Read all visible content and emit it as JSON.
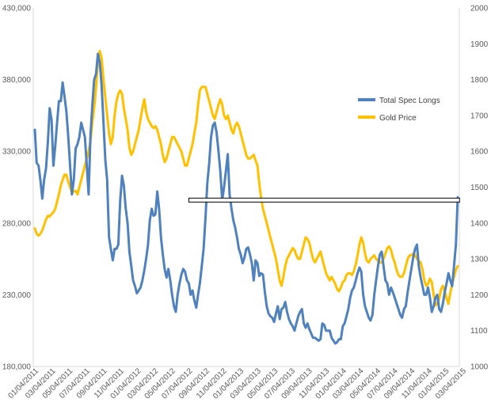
{
  "chart_data": {
    "type": "line",
    "title": "",
    "legend_position": "right",
    "grid": false,
    "series": [
      {
        "name": "Total Spec Longs",
        "axis": "left",
        "color": "#4f81bd",
        "values": [
          345000,
          322000,
          320000,
          310000,
          297000,
          310000,
          318000,
          336000,
          360000,
          352000,
          320000,
          334000,
          350000,
          365000,
          365000,
          378000,
          368000,
          358000,
          340000,
          320000,
          300000,
          310000,
          332000,
          335000,
          340000,
          350000,
          345000,
          340000,
          320000,
          300000,
          342000,
          362000,
          380000,
          384000,
          398000,
          392000,
          376000,
          350000,
          324000,
          310000,
          270000,
          262000,
          254000,
          262000,
          262000,
          265000,
          295000,
          313000,
          306000,
          290000,
          280000,
          260000,
          250000,
          240000,
          236000,
          231000,
          233000,
          235000,
          240000,
          247000,
          255000,
          265000,
          282000,
          290000,
          285000,
          286000,
          302000,
          290000,
          270000,
          258000,
          248000,
          242000,
          248000,
          240000,
          230000,
          222000,
          218000,
          230000,
          238000,
          244000,
          248000,
          246000,
          240000,
          238000,
          230000,
          233000,
          226000,
          221000,
          230000,
          238000,
          250000,
          262000,
          284000,
          308000,
          322000,
          340000,
          348000,
          350000,
          343000,
          330000,
          316000,
          296000,
          305000,
          316000,
          328000,
          300000,
          290000,
          282000,
          277000,
          270000,
          262000,
          258000,
          252000,
          256000,
          262000,
          263000,
          258000,
          252000,
          240000,
          254000,
          252000,
          243000,
          245000,
          244000,
          232000,
          222000,
          217000,
          215000,
          214000,
          211000,
          217000,
          222000,
          213000,
          220000,
          221000,
          225000,
          218000,
          213000,
          210000,
          208000,
          205000,
          210000,
          215000,
          218000,
          220000,
          210000,
          207000,
          210000,
          206000,
          203000,
          200000,
          200000,
          199000,
          198000,
          199000,
          210000,
          209000,
          205000,
          205000,
          205000,
          200000,
          198000,
          196000,
          197000,
          199000,
          199000,
          208000,
          210000,
          215000,
          220000,
          228000,
          233000,
          235000,
          240000,
          245000,
          249000,
          246000,
          230000,
          222000,
          218000,
          214000,
          212000,
          216000,
          230000,
          240000,
          250000,
          258000,
          260000,
          250000,
          240000,
          238000,
          230000,
          235000,
          232000,
          228000,
          224000,
          220000,
          216000,
          214000,
          220000,
          222000,
          232000,
          240000,
          248000,
          256000,
          262000,
          265000,
          250000,
          242000,
          236000,
          230000,
          230000,
          235000,
          228000,
          218000,
          222000,
          228000,
          230000,
          220000,
          218000,
          224000,
          232000,
          238000,
          245000,
          240000,
          236000,
          250000,
          265000,
          298000
        ]
      },
      {
        "name": "Gold Price",
        "axis": "right",
        "color": "#ffc000",
        "values": [
          1385,
          1370,
          1365,
          1370,
          1380,
          1395,
          1410,
          1420,
          1418,
          1425,
          1430,
          1440,
          1460,
          1480,
          1505,
          1520,
          1535,
          1535,
          1515,
          1500,
          1485,
          1488,
          1490,
          1480,
          1500,
          1520,
          1540,
          1560,
          1580,
          1600,
          1630,
          1680,
          1720,
          1780,
          1850,
          1880,
          1860,
          1800,
          1750,
          1700,
          1650,
          1620,
          1640,
          1700,
          1740,
          1760,
          1770,
          1760,
          1720,
          1690,
          1660,
          1610,
          1590,
          1600,
          1620,
          1640,
          1660,
          1690,
          1720,
          1745,
          1710,
          1690,
          1680,
          1670,
          1665,
          1670,
          1660,
          1640,
          1620,
          1590,
          1570,
          1580,
          1600,
          1620,
          1640,
          1640,
          1630,
          1620,
          1610,
          1600,
          1580,
          1560,
          1560,
          1580,
          1600,
          1620,
          1650,
          1680,
          1730,
          1770,
          1780,
          1780,
          1780,
          1760,
          1740,
          1720,
          1700,
          1690,
          1710,
          1730,
          1745,
          1730,
          1700,
          1690,
          1700,
          1680,
          1660,
          1650,
          1670,
          1680,
          1670,
          1650,
          1630,
          1610,
          1590,
          1580,
          1580,
          1585,
          1590,
          1575,
          1560,
          1510,
          1470,
          1440,
          1420,
          1400,
          1380,
          1360,
          1340,
          1320,
          1300,
          1270,
          1240,
          1225,
          1250,
          1280,
          1300,
          1310,
          1320,
          1330,
          1325,
          1310,
          1300,
          1300,
          1320,
          1340,
          1360,
          1355,
          1345,
          1320,
          1300,
          1290,
          1300,
          1310,
          1320,
          1300,
          1280,
          1260,
          1250,
          1240,
          1250,
          1240,
          1230,
          1215,
          1210,
          1220,
          1235,
          1240,
          1255,
          1260,
          1260,
          1255,
          1265,
          1285,
          1310,
          1340,
          1360,
          1345,
          1315,
          1295,
          1290,
          1300,
          1305,
          1310,
          1300,
          1295,
          1290,
          1290,
          1300,
          1315,
          1330,
          1335,
          1325,
          1305,
          1290,
          1270,
          1255,
          1250,
          1250,
          1260,
          1280,
          1300,
          1310,
          1310,
          1315,
          1310,
          1300,
          1295,
          1290,
          1270,
          1240,
          1225,
          1230,
          1245,
          1235,
          1200,
          1170,
          1175,
          1190,
          1215,
          1225,
          1210,
          1190,
          1175,
          1205,
          1230,
          1250,
          1270,
          1280
        ]
      }
    ],
    "y_left": {
      "ylim": [
        180000,
        430000
      ],
      "ticks": [
        180000,
        230000,
        280000,
        330000,
        380000,
        430000
      ],
      "tick_labels": [
        "180,000",
        "230,000",
        "280,000",
        "330,000",
        "380,000",
        "430,000"
      ]
    },
    "y_right": {
      "ylim": [
        1000,
        2000
      ],
      "ticks": [
        1000,
        1100,
        1200,
        1300,
        1400,
        1500,
        1600,
        1700,
        1800,
        1900,
        2000
      ],
      "tick_labels": [
        "1000",
        "1100",
        "1200",
        "1300",
        "1400",
        "1500",
        "1600",
        "1700",
        "1800",
        "1900",
        "2000"
      ]
    },
    "x_tick_labels": [
      "01/04/2011",
      "03/04/2011",
      "05/04/2011",
      "07/04/2011",
      "09/04/2011",
      "11/04/2011",
      "01/04/2012",
      "03/04/2012",
      "05/04/2012",
      "07/04/2012",
      "09/04/2012",
      "11/04/2012",
      "01/04/2013",
      "03/04/2013",
      "05/04/2013",
      "07/04/2013",
      "09/04/2013",
      "11/04/2013",
      "01/04/2014",
      "03/04/2014",
      "05/04/2014",
      "07/04/2014",
      "09/04/2014",
      "11/04/2014",
      "01/04/2015",
      "03/04/2015"
    ],
    "annotation_box": {
      "left_value": 296000,
      "x_start_index": 83,
      "x_end_index": 229,
      "label": ""
    },
    "colors": {
      "axis": "#d9d9d9",
      "text": "#595959",
      "box_stroke": "#000000"
    }
  }
}
